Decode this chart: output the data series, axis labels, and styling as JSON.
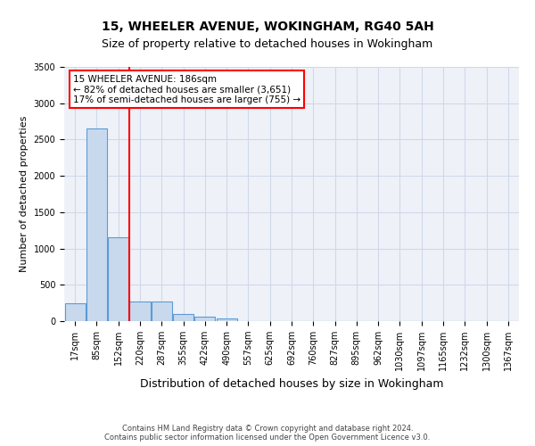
{
  "title": "15, WHEELER AVENUE, WOKINGHAM, RG40 5AH",
  "subtitle": "Size of property relative to detached houses in Wokingham",
  "xlabel": "Distribution of detached houses by size in Wokingham",
  "ylabel": "Number of detached properties",
  "categories": [
    "17sqm",
    "85sqm",
    "152sqm",
    "220sqm",
    "287sqm",
    "355sqm",
    "422sqm",
    "490sqm",
    "557sqm",
    "625sqm",
    "692sqm",
    "760sqm",
    "827sqm",
    "895sqm",
    "962sqm",
    "1030sqm",
    "1097sqm",
    "1165sqm",
    "1232sqm",
    "1300sqm",
    "1367sqm"
  ],
  "values": [
    250,
    2650,
    1150,
    270,
    270,
    100,
    60,
    40,
    5,
    5,
    5,
    2,
    2,
    2,
    2,
    2,
    2,
    2,
    2,
    2,
    2
  ],
  "bar_color": "#c9d9ed",
  "bar_edge_color": "#5b9bd5",
  "red_line_x": 2.5,
  "annotation_text": "15 WHEELER AVENUE: 186sqm\n← 82% of detached houses are smaller (3,651)\n17% of semi-detached houses are larger (755) →",
  "annotation_box_color": "white",
  "annotation_box_edge_color": "red",
  "ylim": [
    0,
    3500
  ],
  "yticks": [
    0,
    500,
    1000,
    1500,
    2000,
    2500,
    3000,
    3500
  ],
  "grid_color": "#d0d8e8",
  "background_color": "#eef2f8",
  "footer_line1": "Contains HM Land Registry data © Crown copyright and database right 2024.",
  "footer_line2": "Contains public sector information licensed under the Open Government Licence v3.0.",
  "title_fontsize": 10,
  "subtitle_fontsize": 9,
  "ylabel_fontsize": 8,
  "xlabel_fontsize": 9,
  "tick_fontsize": 7,
  "annotation_fontsize": 7.5,
  "footer_fontsize": 6
}
